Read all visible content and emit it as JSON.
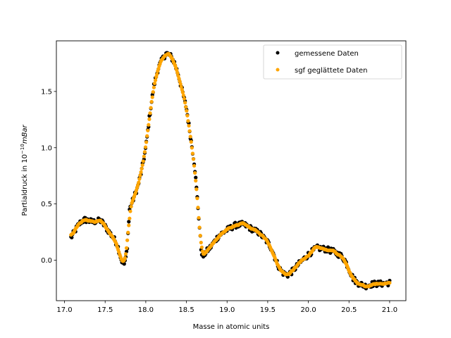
{
  "chart_data": {
    "type": "scatter",
    "title": "",
    "xlabel": "Masse in atomic units",
    "ylabel_prefix": "Partialdruck in 10",
    "ylabel_exponent": "−10",
    "ylabel_unit": "mBar",
    "xlim": [
      16.9,
      21.2
    ],
    "ylim": [
      -0.36,
      1.95
    ],
    "xticks": [
      17.0,
      17.5,
      18.0,
      18.5,
      19.0,
      19.5,
      20.0,
      20.5,
      21.0
    ],
    "xtick_labels": [
      "17.0",
      "17.5",
      "18.0",
      "18.5",
      "19.0",
      "19.5",
      "20.0",
      "20.5",
      "21.0"
    ],
    "yticks": [
      0.0,
      0.5,
      1.0,
      1.5
    ],
    "ytick_labels": [
      "0.0",
      "0.5",
      "1.0",
      "1.5"
    ],
    "grid": false,
    "legend_position": "top-right",
    "profile": [
      [
        17.08,
        0.2
      ],
      [
        17.12,
        0.25
      ],
      [
        17.16,
        0.3
      ],
      [
        17.2,
        0.34
      ],
      [
        17.25,
        0.36
      ],
      [
        17.3,
        0.35
      ],
      [
        17.35,
        0.34
      ],
      [
        17.4,
        0.35
      ],
      [
        17.45,
        0.35
      ],
      [
        17.5,
        0.3
      ],
      [
        17.55,
        0.25
      ],
      [
        17.6,
        0.2
      ],
      [
        17.65,
        0.14
      ],
      [
        17.7,
        0.0
      ],
      [
        17.74,
        -0.04
      ],
      [
        17.77,
        0.1
      ],
      [
        17.8,
        0.45
      ],
      [
        17.85,
        0.55
      ],
      [
        17.9,
        0.65
      ],
      [
        17.95,
        0.8
      ],
      [
        18.0,
        1.0
      ],
      [
        18.05,
        1.3
      ],
      [
        18.1,
        1.55
      ],
      [
        18.15,
        1.7
      ],
      [
        18.2,
        1.78
      ],
      [
        18.25,
        1.84
      ],
      [
        18.3,
        1.82
      ],
      [
        18.35,
        1.76
      ],
      [
        18.4,
        1.65
      ],
      [
        18.45,
        1.5
      ],
      [
        18.5,
        1.35
      ],
      [
        18.55,
        1.1
      ],
      [
        18.6,
        0.85
      ],
      [
        18.65,
        0.4
      ],
      [
        18.68,
        0.1
      ],
      [
        18.7,
        0.03
      ],
      [
        18.75,
        0.08
      ],
      [
        18.8,
        0.12
      ],
      [
        18.9,
        0.22
      ],
      [
        19.0,
        0.27
      ],
      [
        19.1,
        0.31
      ],
      [
        19.2,
        0.32
      ],
      [
        19.3,
        0.28
      ],
      [
        19.4,
        0.24
      ],
      [
        19.5,
        0.16
      ],
      [
        19.55,
        0.1
      ],
      [
        19.6,
        0.0
      ],
      [
        19.65,
        -0.08
      ],
      [
        19.7,
        -0.12
      ],
      [
        19.75,
        -0.13
      ],
      [
        19.8,
        -0.1
      ],
      [
        19.9,
        -0.02
      ],
      [
        20.0,
        0.05
      ],
      [
        20.1,
        0.11
      ],
      [
        20.2,
        0.1
      ],
      [
        20.3,
        0.08
      ],
      [
        20.4,
        0.04
      ],
      [
        20.45,
        0.0
      ],
      [
        20.5,
        -0.08
      ],
      [
        20.55,
        -0.16
      ],
      [
        20.6,
        -0.2
      ],
      [
        20.7,
        -0.23
      ],
      [
        20.8,
        -0.21
      ],
      [
        20.9,
        -0.21
      ],
      [
        21.0,
        -0.2
      ]
    ],
    "series": [
      {
        "name": "gemessene Daten",
        "color": "#000000",
        "marker": "circle"
      },
      {
        "name": "sgf geglättete Daten",
        "color": "#ffa500",
        "marker": "circle"
      }
    ]
  }
}
